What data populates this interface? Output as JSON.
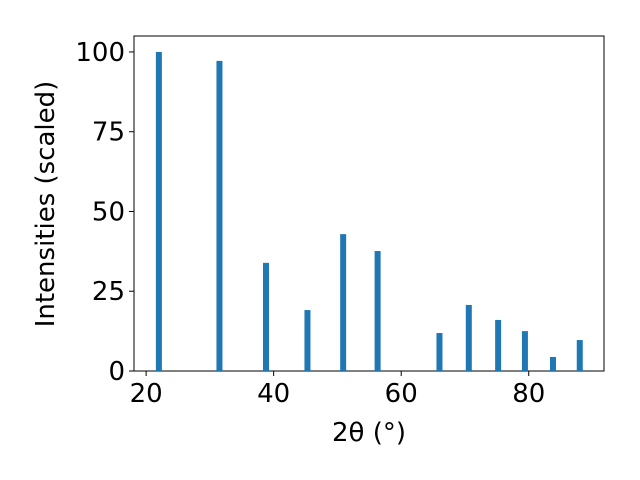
{
  "chart_data": {
    "type": "bar",
    "xlabel": "2θ (°)",
    "ylabel": "Intensities (scaled)",
    "x": [
      22.0,
      31.5,
      38.8,
      45.3,
      50.9,
      56.3,
      66.0,
      70.6,
      75.2,
      79.4,
      83.8,
      88.0
    ],
    "values": [
      100,
      97.2,
      33.9,
      19.1,
      42.9,
      37.6,
      11.9,
      20.7,
      16,
      12.5,
      4.4,
      9.7
    ],
    "color": "#1f77b4",
    "xlim": [
      18.1,
      91.8
    ],
    "xticks": [
      20,
      40,
      60,
      80
    ],
    "ylim": [
      0,
      105
    ],
    "yticks": [
      0,
      25,
      50,
      75,
      100
    ],
    "grid": false
  }
}
